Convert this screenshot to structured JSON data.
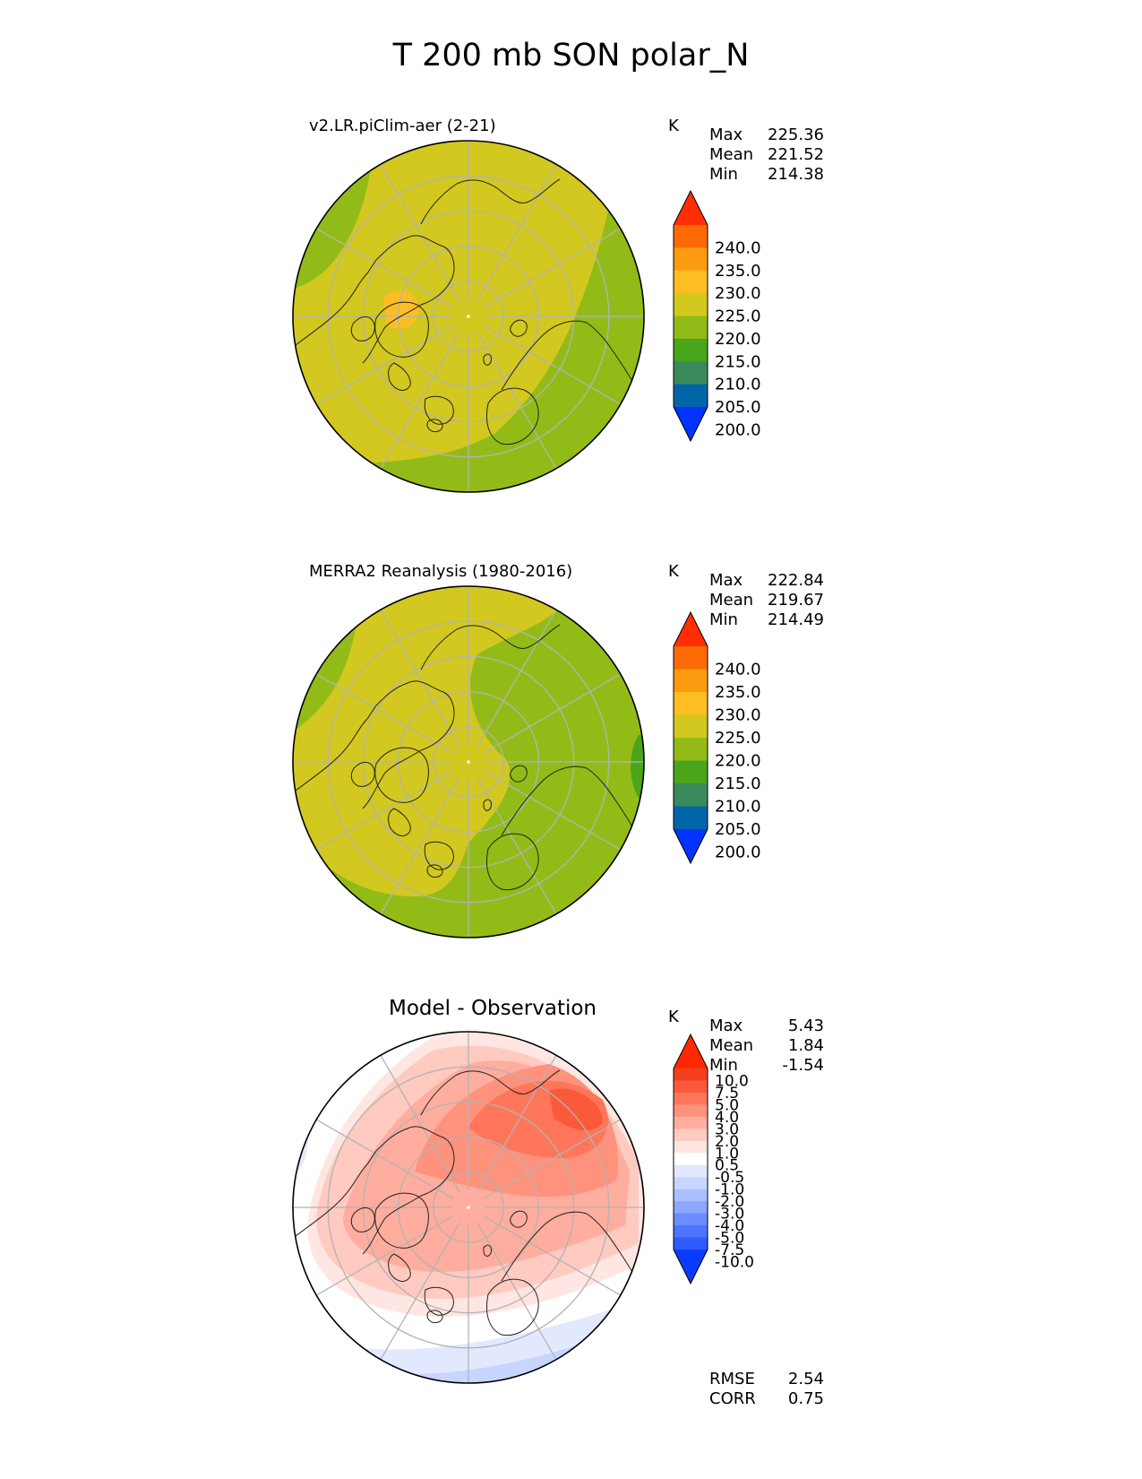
{
  "figure_title": "T 200 mb SON polar_N",
  "chart_data": [
    {
      "type": "heatmap",
      "projection": "north polar stereographic",
      "title": "v2.LR.piClim-aer (2-21)",
      "units": "K",
      "stats": {
        "max_label": "Max",
        "max": "225.36",
        "mean_label": "Mean",
        "mean": "221.52",
        "min_label": "Min",
        "min": "214.38"
      },
      "colorbar": {
        "tick_labels": [
          "240.0",
          "235.0",
          "230.0",
          "225.0",
          "220.0",
          "215.0",
          "210.0",
          "205.0",
          "200.0"
        ],
        "colors": [
          "#0033ff",
          "#0066a8",
          "#3a8a5c",
          "#4aa51a",
          "#93bb18",
          "#d2c81f",
          "#fcbe22",
          "#fb9b10",
          "#fb6a05",
          "#ff2e05"
        ],
        "extend": "both"
      },
      "field": {
        "dominant_range": [
          220,
          225
        ],
        "min": 214.38,
        "max": 225.36,
        "mean": 221.52
      }
    },
    {
      "type": "heatmap",
      "projection": "north polar stereographic",
      "title": "MERRA2 Reanalysis (1980-2016)",
      "units": "K",
      "stats": {
        "max_label": "Max",
        "max": "222.84",
        "mean_label": "Mean",
        "mean": "219.67",
        "min_label": "Min",
        "min": "214.49"
      },
      "colorbar": {
        "tick_labels": [
          "240.0",
          "235.0",
          "230.0",
          "225.0",
          "220.0",
          "215.0",
          "210.0",
          "205.0",
          "200.0"
        ],
        "colors": [
          "#0033ff",
          "#0066a8",
          "#3a8a5c",
          "#4aa51a",
          "#93bb18",
          "#d2c81f",
          "#fcbe22",
          "#fb9b10",
          "#fb6a05",
          "#ff2e05"
        ],
        "extend": "both"
      },
      "field": {
        "dominant_range": [
          215,
          225
        ],
        "min": 214.49,
        "max": 222.84,
        "mean": 219.67
      }
    },
    {
      "type": "heatmap",
      "projection": "north polar stereographic",
      "title": "Model - Observation",
      "units": "K",
      "stats": {
        "max_label": "Max",
        "max": "5.43",
        "mean_label": "Mean",
        "mean": "1.84",
        "min_label": "Min",
        "min": "-1.54"
      },
      "colorbar": {
        "tick_labels": [
          "10.0",
          "7.5",
          "5.0",
          "4.0",
          "3.0",
          "2.0",
          "1.0",
          "0.5",
          "-0.5",
          "-1.0",
          "-2.0",
          "-3.0",
          "-4.0",
          "-5.0",
          "-7.5",
          "-10.0"
        ],
        "colors": [
          "#0a3cff",
          "#2e5bff",
          "#4d73ff",
          "#6c8cff",
          "#8da6ff",
          "#aabfff",
          "#c8d5ff",
          "#e2e9ff",
          "#ffffff",
          "#ffe6e2",
          "#ffcac0",
          "#ffad9e",
          "#ff927c",
          "#ff765a",
          "#fb5a3a",
          "#f5401e",
          "#ff2800"
        ],
        "extend": "both"
      },
      "metrics": {
        "rmse_label": "RMSE",
        "rmse": "2.54",
        "corr_label": "CORR",
        "corr": "0.75"
      },
      "field": {
        "min": -1.54,
        "max": 5.43,
        "mean": 1.84
      }
    }
  ]
}
